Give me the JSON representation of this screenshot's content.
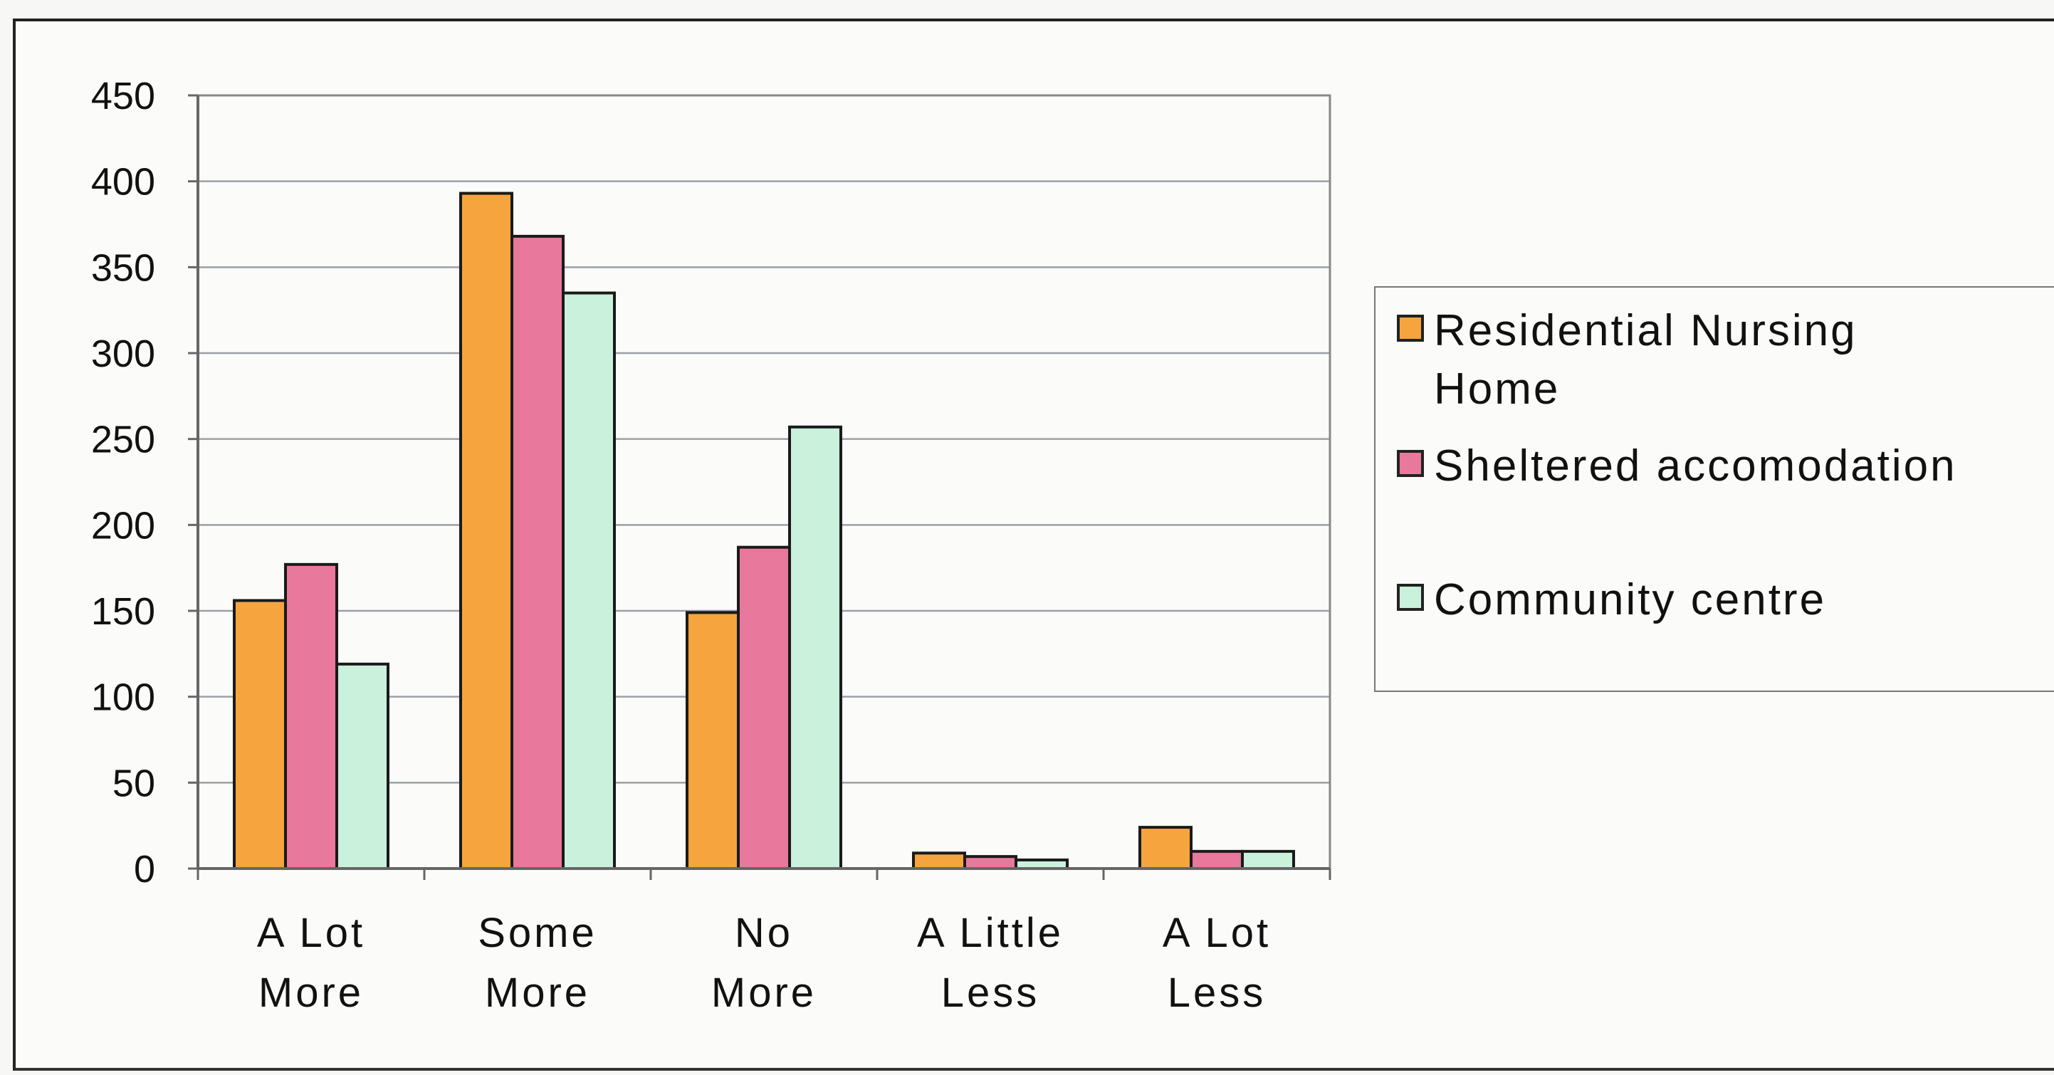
{
  "chart_data": {
    "type": "bar",
    "title": "",
    "xlabel": "",
    "ylabel": "",
    "ylim": [
      0,
      450
    ],
    "yticks": [
      0,
      50,
      100,
      150,
      200,
      250,
      300,
      350,
      400,
      450
    ],
    "grid": true,
    "legend_position": "right",
    "categories": [
      [
        "A Lot",
        "More"
      ],
      [
        "Some",
        "More"
      ],
      [
        "No",
        "More"
      ],
      [
        "A Little",
        "Less"
      ],
      [
        "A Lot",
        "Less"
      ]
    ],
    "series": [
      {
        "name": "Residential Nursing Home",
        "color": "#f5a43e",
        "values": [
          156,
          393,
          149,
          9,
          24
        ]
      },
      {
        "name": "Sheltered accomodation",
        "color": "#e8789c",
        "values": [
          177,
          368,
          187,
          7,
          10
        ]
      },
      {
        "name": "Community centre",
        "color": "#c9f1dc",
        "values": [
          119,
          335,
          257,
          5,
          10
        ]
      }
    ]
  },
  "legend": {
    "items": [
      {
        "line1": "Residential Nursing",
        "line2": "Home"
      },
      {
        "line1": "Sheltered accomodation",
        "line2": ""
      },
      {
        "line1": "Community centre",
        "line2": ""
      }
    ]
  }
}
